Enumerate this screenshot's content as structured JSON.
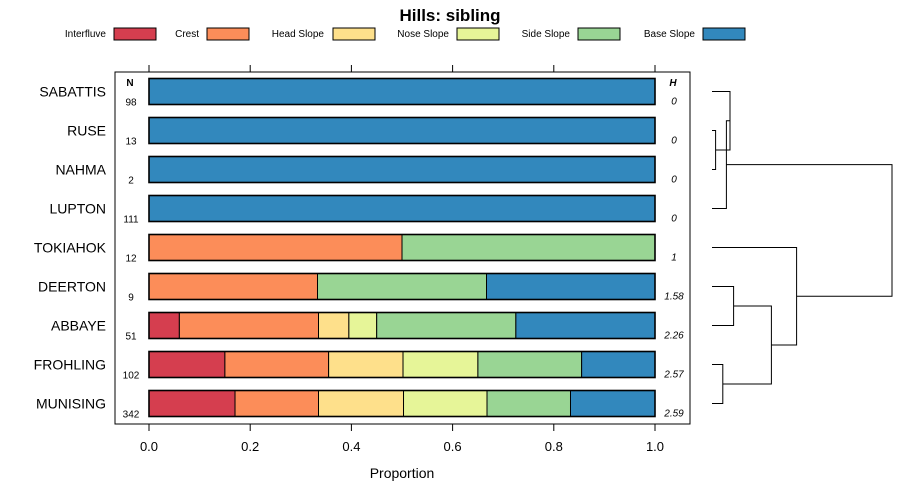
{
  "chart_data": {
    "type": "bar",
    "stacked": true,
    "orientation": "horizontal",
    "title": "Hills: sibling",
    "xlabel": "Proportion",
    "ylabel": "",
    "xlim": [
      0,
      1
    ],
    "xticks": [
      "0.0",
      "0.2",
      "0.4",
      "0.6",
      "0.8",
      "1.0"
    ],
    "xtick_values": [
      0,
      0.2,
      0.4,
      0.6,
      0.8,
      1.0
    ],
    "n_header": "N",
    "h_header": "H",
    "legend_position": "top",
    "legend": [
      {
        "name": "Interfluve",
        "color": "#d53e4f"
      },
      {
        "name": "Crest",
        "color": "#fc8d59"
      },
      {
        "name": "Head Slope",
        "color": "#fee08b"
      },
      {
        "name": "Nose Slope",
        "color": "#e6f598"
      },
      {
        "name": "Side Slope",
        "color": "#99d594"
      },
      {
        "name": "Base Slope",
        "color": "#3288bd"
      }
    ],
    "categories": [
      "SABATTIS",
      "RUSE",
      "NAHMA",
      "LUPTON",
      "TOKIAHOK",
      "DEERTON",
      "ABBAYE",
      "FROHLING",
      "MUNISING"
    ],
    "n": [
      "98",
      "13",
      "2",
      "111",
      "12",
      "9",
      "51",
      "102",
      "342"
    ],
    "h": [
      "0",
      "0",
      "0",
      "0",
      "1",
      "1.58",
      "2.26",
      "2.57",
      "2.59"
    ],
    "series": [
      {
        "name": "Interfluve",
        "values": [
          0,
          0,
          0,
          0,
          0,
          0,
          0.06,
          0.15,
          0.17
        ]
      },
      {
        "name": "Crest",
        "values": [
          0,
          0,
          0,
          0,
          0.5,
          0.333,
          0.275,
          0.205,
          0.165
        ]
      },
      {
        "name": "Head Slope",
        "values": [
          0,
          0,
          0,
          0,
          0,
          0,
          0.06,
          0.147,
          0.168
        ]
      },
      {
        "name": "Nose Slope",
        "values": [
          0,
          0,
          0,
          0,
          0,
          0,
          0.055,
          0.148,
          0.165
        ]
      },
      {
        "name": "Side Slope",
        "values": [
          0,
          0,
          0,
          0,
          0.5,
          0.334,
          0.275,
          0.205,
          0.165
        ]
      },
      {
        "name": "Base Slope",
        "values": [
          1,
          1,
          1,
          1,
          0,
          0.333,
          0.275,
          0.145,
          0.167
        ]
      }
    ],
    "dendrogram": {
      "leaves": [
        "SABATTIS",
        "RUSE",
        "NAHMA",
        "LUPTON",
        "TOKIAHOK",
        "DEERTON",
        "ABBAYE",
        "FROHLING",
        "MUNISING"
      ],
      "merges": [
        {
          "a": "RUSE",
          "b": "NAHMA",
          "height": 0.02
        },
        {
          "a": "SABATTIS",
          "b": "RUSE+NAHMA",
          "height": 0.1
        },
        {
          "a": "SABATTIS+RUSE+NAHMA",
          "b": "LUPTON",
          "height": 0.08
        },
        {
          "a": "DEERTON",
          "b": "ABBAYE",
          "height": 0.12
        },
        {
          "a": "FROHLING",
          "b": "MUNISING",
          "height": 0.06
        },
        {
          "a": "DEERTON+ABBAYE",
          "b": "FROHLING+MUNISING",
          "height": 0.33
        },
        {
          "a": "TOKIAHOK",
          "b": "DEERTON+ABBAYE+FROHLING+MUNISING",
          "height": 0.47
        },
        {
          "a": "SABATTIS+RUSE+NAHMA+LUPTON",
          "b": "TOKIAHOK+DEERTON+ABBAYE+FROHLING+MUNISING",
          "height": 1.0
        }
      ]
    }
  }
}
